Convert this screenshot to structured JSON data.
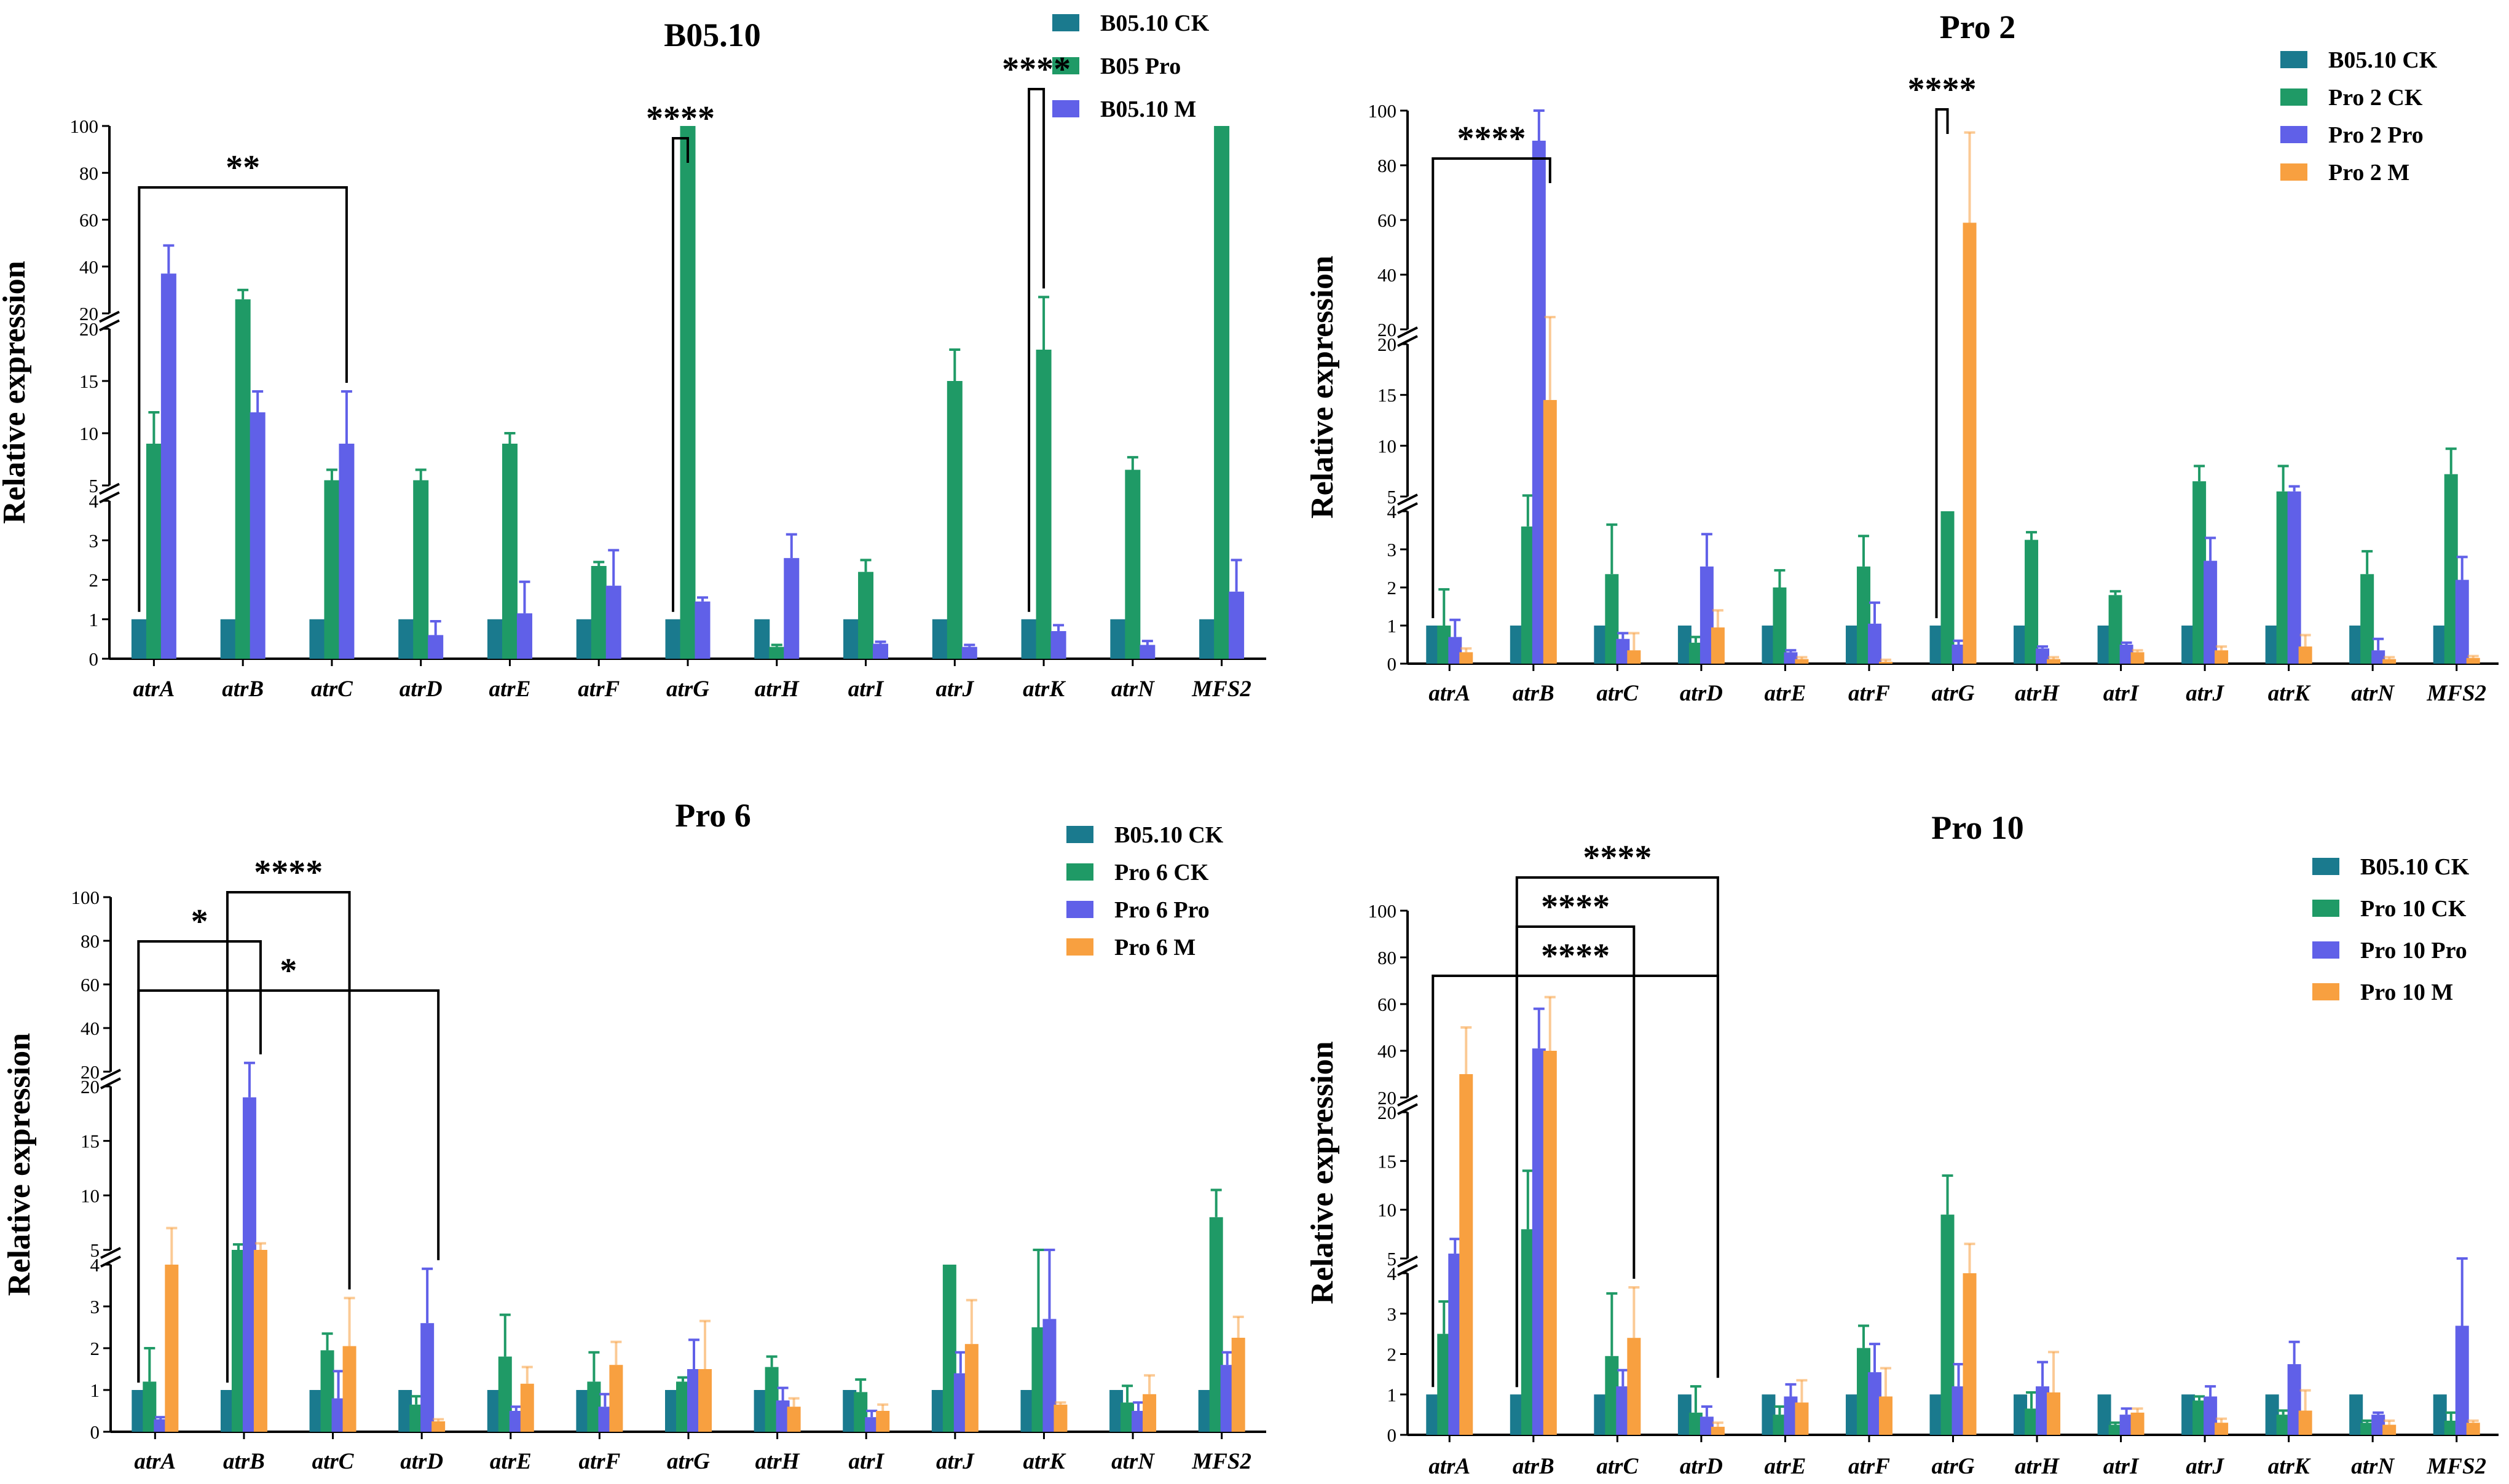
{
  "chart_data": [
    {
      "type": "bar",
      "title": "B05.10",
      "ylabel": "Relative expression",
      "categories": [
        "atrA",
        "atrB",
        "atrC",
        "atrD",
        "atrE",
        "atrF",
        "atrG",
        "atrH",
        "atrI",
        "atrJ",
        "atrK",
        "atrN",
        "MFS2"
      ],
      "axis_segments": [
        {
          "range": [
            0,
            4
          ],
          "ticks": [
            0,
            1,
            2,
            3,
            4
          ]
        },
        {
          "range": [
            5,
            20
          ],
          "ticks": [
            5,
            10,
            15,
            20
          ]
        },
        {
          "range": [
            20,
            100
          ],
          "ticks": [
            20,
            40,
            60,
            80,
            100
          ]
        }
      ],
      "colors": [
        "#1a7a8e",
        "#1f9a66",
        "#6060e8"
      ],
      "series": [
        {
          "name": "B05.10 CK",
          "values": [
            1,
            1,
            1,
            1,
            1,
            1,
            1,
            1,
            1,
            1,
            1,
            1,
            1
          ],
          "errors": [
            0,
            0,
            0,
            0,
            0,
            0,
            0,
            0,
            0,
            0,
            0,
            0,
            0
          ]
        },
        {
          "name": "B05 Pro",
          "values": [
            9,
            26,
            5.5,
            5.5,
            9,
            2.35,
            100,
            0.3,
            2.2,
            15,
            18,
            6.5,
            100
          ],
          "errors": [
            3,
            4,
            1,
            1,
            1,
            0.1,
            0,
            0.05,
            0.3,
            3,
            9,
            1.2,
            0
          ]
        },
        {
          "name": "B05.10 M",
          "values": [
            37,
            12,
            9,
            0.6,
            1.15,
            1.85,
            1.45,
            2.55,
            0.38,
            0.3,
            0.7,
            0.35,
            1.7
          ],
          "errors": [
            12,
            2,
            5,
            0.35,
            0.8,
            0.9,
            0.1,
            0.6,
            0.05,
            0.05,
            0.15,
            0.1,
            0.8
          ]
        }
      ],
      "significance": [
        {
          "from": 0,
          "to": 2,
          "label": "**"
        },
        {
          "from": 6,
          "to": 6,
          "label": "****"
        },
        {
          "from": 10,
          "to": 10,
          "label": "****"
        }
      ]
    },
    {
      "type": "bar",
      "title": "Pro 2",
      "ylabel": "Relative expression",
      "categories": [
        "atrA",
        "atrB",
        "atrC",
        "atrD",
        "atrE",
        "atrF",
        "atrG",
        "atrH",
        "atrI",
        "atrJ",
        "atrK",
        "atrN",
        "MFS2"
      ],
      "axis_segments": [
        {
          "range": [
            0,
            4
          ],
          "ticks": [
            0,
            1,
            2,
            3,
            4
          ]
        },
        {
          "range": [
            5,
            20
          ],
          "ticks": [
            5,
            10,
            15,
            20
          ]
        },
        {
          "range": [
            20,
            100
          ],
          "ticks": [
            20,
            40,
            60,
            80,
            100
          ]
        }
      ],
      "colors": [
        "#1a7a8e",
        "#1f9a66",
        "#6060e8",
        "#f8a040"
      ],
      "series": [
        {
          "name": "B05.10 CK",
          "values": [
            1,
            1,
            1,
            1,
            1,
            1,
            1,
            1,
            1,
            1,
            1,
            1,
            1
          ],
          "errors": [
            0,
            0,
            0,
            0,
            0,
            0,
            0,
            0,
            0,
            0,
            0,
            0,
            0
          ]
        },
        {
          "name": "Pro 2 CK",
          "values": [
            1,
            3.6,
            2.35,
            0.55,
            2,
            2.55,
            4,
            3.25,
            1.8,
            6.5,
            5.5,
            2.35,
            7.2
          ],
          "errors": [
            0.95,
            1.5,
            1.3,
            0.15,
            0.45,
            0.8,
            0,
            0.2,
            0.1,
            1.5,
            2.5,
            0.6,
            2.5
          ]
        },
        {
          "name": "Pro 2 Pro",
          "values": [
            0.7,
            89,
            0.65,
            2.55,
            0.3,
            1.05,
            0.5,
            0.4,
            0.5,
            2.7,
            5.5,
            0.35,
            2.2
          ],
          "errors": [
            0.45,
            11,
            0.15,
            0.85,
            0.05,
            0.55,
            0.1,
            0.05,
            0.05,
            0.6,
            0.5,
            0.3,
            0.6
          ]
        },
        {
          "name": "Pro 2 M",
          "values": [
            0.3,
            14.5,
            0.35,
            0.95,
            0.12,
            0.05,
            59,
            0.12,
            0.3,
            0.35,
            0.45,
            0.12,
            0.15
          ],
          "errors": [
            0.1,
            10,
            0.45,
            0.45,
            0.05,
            0.05,
            33,
            0.05,
            0.05,
            0.1,
            0.3,
            0.05,
            0.05
          ]
        }
      ],
      "significance": [
        {
          "from": 0,
          "to": 1,
          "label": "****"
        },
        {
          "from": 6,
          "to": 6,
          "label": "****"
        }
      ]
    },
    {
      "type": "bar",
      "title": "Pro 6",
      "ylabel": "Relative expression",
      "categories": [
        "atrA",
        "atrB",
        "atrC",
        "atrD",
        "atrE",
        "atrF",
        "atrG",
        "atrH",
        "atrI",
        "atrJ",
        "atrK",
        "atrN",
        "MFS2"
      ],
      "axis_segments": [
        {
          "range": [
            0,
            4
          ],
          "ticks": [
            0,
            1,
            2,
            3,
            4
          ]
        },
        {
          "range": [
            5,
            20
          ],
          "ticks": [
            5,
            10,
            15,
            20
          ]
        },
        {
          "range": [
            20,
            100
          ],
          "ticks": [
            20,
            40,
            60,
            80,
            100
          ]
        }
      ],
      "colors": [
        "#1a7a8e",
        "#1f9a66",
        "#6060e8",
        "#f8a040"
      ],
      "series": [
        {
          "name": "B05.10 CK",
          "values": [
            1,
            1,
            1,
            1,
            1,
            1,
            1,
            1,
            1,
            1,
            1,
            1,
            1
          ],
          "errors": [
            0,
            0,
            0,
            0,
            0,
            0,
            0,
            0,
            0,
            0,
            0,
            0,
            0
          ]
        },
        {
          "name": "Pro 6 CK",
          "values": [
            1.2,
            5,
            1.95,
            0.65,
            1.8,
            1.2,
            1.2,
            1.55,
            0.95,
            4,
            2.5,
            0.7,
            8
          ],
          "errors": [
            0.8,
            0.5,
            0.4,
            0.2,
            1,
            0.7,
            0.1,
            0.25,
            0.3,
            0,
            1.6,
            0.4,
            2.5
          ]
        },
        {
          "name": "Pro 6 Pro",
          "values": [
            0.3,
            19,
            0.8,
            2.6,
            0.5,
            0.6,
            1.5,
            0.75,
            0.35,
            1.4,
            2.7,
            0.5,
            1.6
          ],
          "errors": [
            0.05,
            5,
            0.65,
            1.3,
            0.1,
            0.3,
            0.7,
            0.3,
            0.15,
            0.5,
            1.4,
            0.2,
            0.3
          ]
        },
        {
          "name": "Pro 6 M",
          "values": [
            4,
            5,
            2.05,
            0.25,
            1.15,
            1.6,
            1.5,
            0.6,
            0.5,
            2.1,
            0.65,
            0.9,
            2.25
          ],
          "errors": [
            3,
            0.6,
            1.15,
            0.05,
            0.4,
            0.55,
            1.15,
            0.2,
            0.15,
            1.05,
            0.05,
            0.45,
            0.5
          ]
        }
      ],
      "significance": [
        {
          "from": 0,
          "to": 3,
          "label": "*"
        },
        {
          "from": 0,
          "to": 1,
          "label": "*"
        },
        {
          "from": 1,
          "to": 2,
          "label": "****"
        }
      ]
    },
    {
      "type": "bar",
      "title": "Pro 10",
      "ylabel": "Relative expression",
      "categories": [
        "atrA",
        "atrB",
        "atrC",
        "atrD",
        "atrE",
        "atrF",
        "atrG",
        "atrH",
        "atrI",
        "atrJ",
        "atrK",
        "atrN",
        "MFS2"
      ],
      "axis_segments": [
        {
          "range": [
            0,
            4
          ],
          "ticks": [
            0,
            1,
            2,
            3,
            4
          ]
        },
        {
          "range": [
            5,
            20
          ],
          "ticks": [
            5,
            10,
            15,
            20
          ]
        },
        {
          "range": [
            20,
            100
          ],
          "ticks": [
            20,
            40,
            60,
            80,
            100
          ]
        }
      ],
      "colors": [
        "#1a7a8e",
        "#1f9a66",
        "#6060e8",
        "#f8a040"
      ],
      "series": [
        {
          "name": "B05.10 CK",
          "values": [
            1,
            1,
            1,
            1,
            1,
            1,
            1,
            1,
            1,
            1,
            1,
            1,
            1
          ],
          "errors": [
            0,
            0,
            0,
            0,
            0,
            0,
            0,
            0,
            0,
            0,
            0,
            0,
            0
          ]
        },
        {
          "name": "Pro 10 CK",
          "values": [
            2.5,
            8,
            1.95,
            0.55,
            0.5,
            2.15,
            9.5,
            0.65,
            0.25,
            0.85,
            0.5,
            0.3,
            0.35
          ],
          "errors": [
            0.8,
            6,
            1.55,
            0.65,
            0.2,
            0.55,
            4,
            0.4,
            0.05,
            0.1,
            0.1,
            0.05,
            0.2
          ]
        },
        {
          "name": "Pro 10 Pro",
          "values": [
            5.5,
            41,
            1.2,
            0.45,
            0.95,
            1.55,
            1.2,
            1.2,
            0.5,
            0.95,
            1.75,
            0.5,
            2.7
          ],
          "errors": [
            1.5,
            17,
            0.4,
            0.25,
            0.3,
            0.7,
            0.55,
            0.6,
            0.15,
            0.25,
            0.55,
            0.05,
            1.35
          ]
        },
        {
          "name": "Pro 10 M",
          "values": [
            30,
            40,
            2.4,
            0.2,
            0.8,
            0.95,
            4,
            1.05,
            0.55,
            0.3,
            0.6,
            0.25,
            0.3
          ],
          "errors": [
            20,
            23,
            1.25,
            0.1,
            0.55,
            0.7,
            2.5,
            1,
            0.1,
            0.1,
            0.5,
            0.1,
            0.05
          ]
        }
      ],
      "significance": [
        {
          "from": 0,
          "to": 3,
          "label": "****"
        },
        {
          "from": 1,
          "to": 2,
          "label": "****"
        },
        {
          "from": 1,
          "to": 3,
          "label": "****"
        }
      ]
    }
  ]
}
